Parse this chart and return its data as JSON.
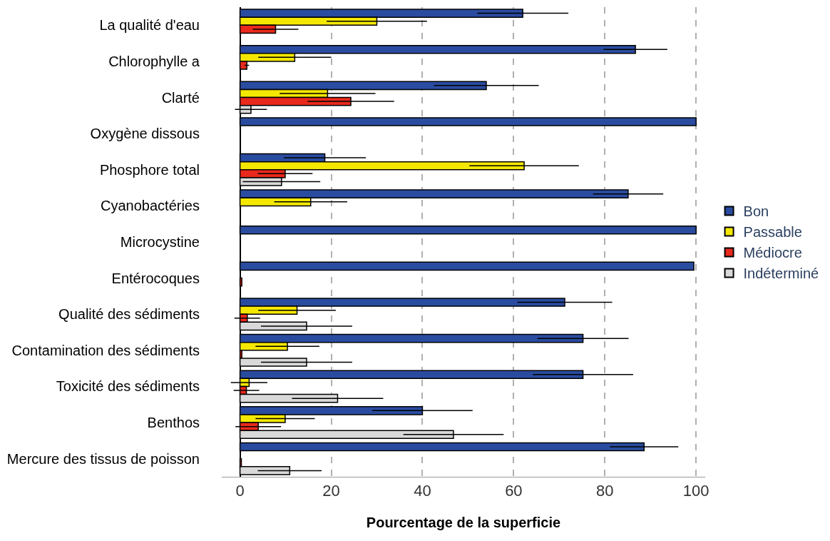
{
  "chart_data": {
    "type": "bar",
    "orientation": "horizontal",
    "xlabel": "Pourcentage de la superficie",
    "categories": [
      "La qualité d'eau",
      "Chlorophylle a",
      "Clarté",
      "Oxygène dissous",
      "Phosphore total",
      "Cyanobactéries",
      "Microcystine",
      "Entérocoques",
      "Qualité des sédiments",
      "Contamination des sédiments",
      "Toxicité des sédiments",
      "Benthos",
      "Mercure des tissus de poisson"
    ],
    "series": [
      {
        "name": "Bon",
        "color": "#2a4ca0",
        "values": [
          62,
          86.7,
          54,
          100,
          18.6,
          85.1,
          100,
          99.5,
          71.2,
          75.2,
          75.2,
          40,
          88.6
        ],
        "errors": [
          10,
          7,
          11.5,
          null,
          9,
          7.7,
          null,
          null,
          10.4,
          10,
          11,
          11,
          7.5
        ]
      },
      {
        "name": "Passable",
        "color": "#f5e800",
        "values": [
          30,
          12,
          19.2,
          null,
          62.3,
          15.5,
          null,
          null,
          12.5,
          10.4,
          2,
          9.9,
          null
        ],
        "errors": [
          11,
          8,
          10.5,
          null,
          12,
          8,
          null,
          null,
          8.5,
          7,
          4,
          6.5,
          null
        ]
      },
      {
        "name": "Médiocre",
        "color": "#e8291c",
        "values": [
          7.8,
          1.5,
          24.3,
          null,
          9.9,
          null,
          null,
          0.4,
          1.6,
          0.4,
          1.4,
          4,
          0.3
        ],
        "errors": [
          5,
          0.5,
          9.5,
          null,
          6,
          null,
          null,
          null,
          2.8,
          null,
          2.8,
          5,
          null
        ]
      },
      {
        "name": "Indéterminé",
        "color": "#d9d9d9",
        "values": [
          null,
          null,
          2.4,
          null,
          9.1,
          null,
          null,
          null,
          14.6,
          14.6,
          21.4,
          46.8,
          10.9
        ],
        "errors": [
          null,
          null,
          3.5,
          null,
          8.5,
          null,
          null,
          null,
          10,
          10,
          10,
          11,
          7
        ]
      }
    ],
    "xlim": [
      -4,
      102
    ],
    "xticks": [
      0,
      20,
      40,
      60,
      80,
      100
    ],
    "grid": "x",
    "legend": "right"
  }
}
